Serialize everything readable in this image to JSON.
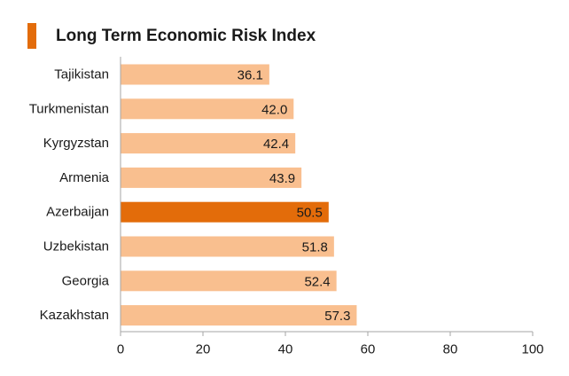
{
  "title": "Long Term Economic Risk Index",
  "chart_data": {
    "type": "bar",
    "orientation": "horizontal",
    "title": "Long Term Economic Risk Index",
    "xlabel": "",
    "ylabel": "",
    "categories": [
      "Tajikistan",
      "Turkmenistan",
      "Kyrgyzstan",
      "Armenia",
      "Azerbaijan",
      "Uzbekistan",
      "Georgia",
      "Kazakhstan"
    ],
    "values": [
      36.1,
      42.0,
      42.4,
      43.9,
      50.5,
      51.8,
      52.4,
      57.3
    ],
    "value_labels": [
      "36.1",
      "42.0",
      "42.4",
      "43.9",
      "50.5",
      "51.8",
      "52.4",
      "57.3"
    ],
    "highlight": "Azerbaijan",
    "xlim": [
      0,
      100
    ],
    "xticks": [
      0,
      20,
      40,
      60,
      80,
      100
    ],
    "grid": false,
    "legend": "none",
    "colors": {
      "bar": "#f9bf8f",
      "highlight": "#e36c0a",
      "axis": "#a6a6a6",
      "text": "#1a1a1a",
      "accent": "#e36c0a"
    }
  }
}
